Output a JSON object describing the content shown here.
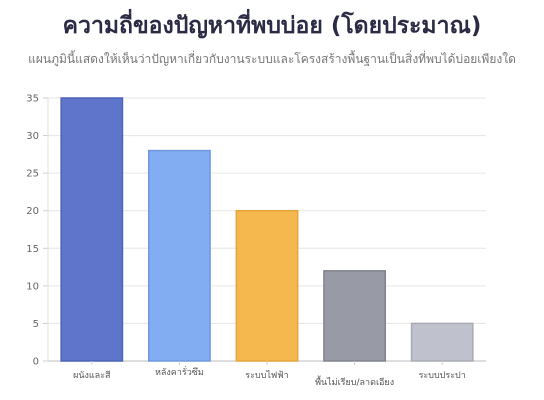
{
  "title": "ความถี่ของปัญหาที่พบบ่อย (โดยประมาณ)",
  "subtitle": "แผนภูมินี้แสดงให้เห็นว่าปัญหาเกี่ยวกับงานระบบและโครงสร้างพื้นฐานเป็นสิ่งที่พบได้บ่อยเพียงใด",
  "chart_data": {
    "type": "bar",
    "title": "ความถี่ของปัญหาที่พบบ่อย (โดยประมาณ)",
    "subtitle": "แผนภูมินี้แสดงให้เห็นว่าปัญหาเกี่ยวกับงานระบบและโครงสร้างพื้นฐานเป็นสิ่งที่พบได้บ่อยเพียงใด",
    "categories": [
      "ผนังและสี",
      "หลังคารั่วซึม",
      "ระบบไฟฟ้า",
      "พื้นไม่เรียบ/ลาดเอียง",
      "ระบบประปา"
    ],
    "values": [
      35,
      28,
      20,
      12,
      5
    ],
    "colors": [
      "#5f75cc",
      "#82adf2",
      "#f5b84f",
      "#989ba6",
      "#bfc2cc"
    ],
    "border_colors": [
      "#4d63b8",
      "#6e99e0",
      "#e6a53b",
      "#80838e",
      "#a8abb5"
    ],
    "xlabel": "",
    "ylabel": "",
    "ylim": [
      0,
      35
    ],
    "yticks": [
      0,
      5,
      10,
      15,
      20,
      25,
      30,
      35
    ],
    "grid": true,
    "legend": "none"
  }
}
